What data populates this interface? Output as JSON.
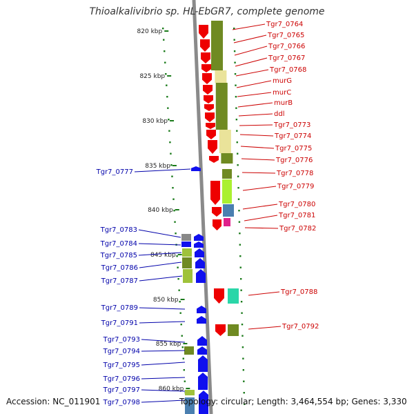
{
  "title": "Thioalkalivibrio sp. HL-EbGR7, complete genome",
  "footer": {
    "accession": "Accession: NC_011901",
    "topology": "Topology: circular; Length: 3,464,554 bp; Genes: 3,330"
  },
  "colors": {
    "backbone": "#9a9a9a",
    "forward_gene": "#ee0000",
    "reverse_gene": "#1010ee",
    "forward_label": "#cc0000",
    "reverse_label": "#0000aa",
    "tick": "#1a7a1a",
    "olive": "#6f8a22",
    "olive_light": "#9fc23a",
    "pale_yellow": "#eae39a",
    "lime": "#aaf030",
    "teal": "#2ad6a8",
    "steel_blue": "#4a7fb0",
    "magenta": "#e0208a",
    "gray": "#888888"
  },
  "scale_labels": [
    "820 kbp",
    "825 kbp",
    "830 kbp",
    "835 kbp",
    "840 kbp",
    "845 kbp",
    "850 kbp",
    "855 kbp",
    "860 kbp"
  ],
  "forward_labels": [
    "Tgr7_0764",
    "Tgr7_0765",
    "Tgr7_0766",
    "Tgr7_0767",
    "Tgr7_0768",
    "murG",
    "murC",
    "murB",
    "ddl",
    "Tgr7_0773",
    "Tgr7_0774",
    "Tgr7_0775",
    "Tgr7_0776",
    "Tgr7_0778",
    "Tgr7_0779",
    "Tgr7_0780",
    "Tgr7_0781",
    "Tgr7_0782",
    "Tgr7_0788",
    "Tgr7_0792"
  ],
  "reverse_labels": [
    "Tgr7_0777",
    "Tgr7_0783",
    "Tgr7_0784",
    "Tgr7_0785",
    "Tgr7_0786",
    "Tgr7_0787",
    "Tgr7_0789",
    "Tgr7_0791",
    "Tgr7_0793",
    "Tgr7_0794",
    "Tgr7_0795",
    "Tgr7_0796",
    "Tgr7_0797",
    "Tgr7_0798"
  ]
}
